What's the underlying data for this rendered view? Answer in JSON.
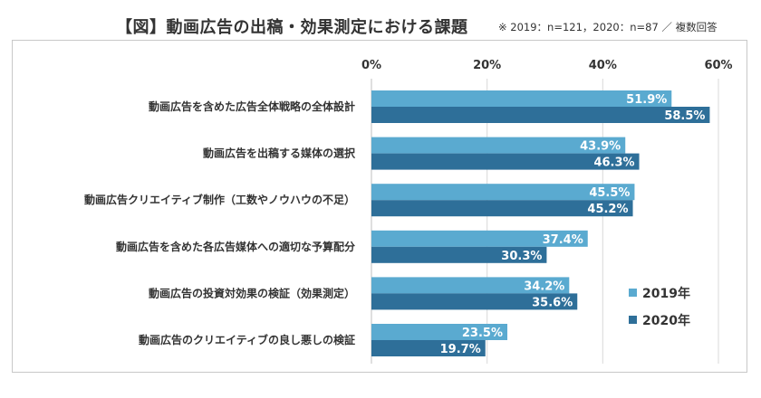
{
  "title": "【図】動画広告の出稿・効果測定における課題",
  "note": "※ 2019：n=121，2020：n=87 ／ 複数回答",
  "chart_data": {
    "type": "bar",
    "orientation": "horizontal",
    "categories": [
      "動画広告を含めた広告全体戦略の全体設計",
      "動画広告を出稿する媒体の選択",
      "動画広告クリエイティブ制作（工数やノウハウの不足）",
      "動画広告を含めた各広告媒体への適切な予算配分",
      "動画広告の投資対効果の検証（効果測定）",
      "動画広告のクリエイティブの良し悪しの検証"
    ],
    "series": [
      {
        "name": "2019年",
        "color": "#5aaad0",
        "values": [
          51.9,
          43.9,
          45.5,
          37.4,
          34.2,
          23.5
        ]
      },
      {
        "name": "2020年",
        "color": "#2e6f99",
        "values": [
          58.5,
          46.3,
          45.2,
          30.3,
          35.6,
          19.7
        ]
      }
    ],
    "xlim": [
      0,
      60
    ],
    "ticks": [
      "0%",
      "20%",
      "40%",
      "60%"
    ],
    "tick_values": [
      0,
      20,
      40,
      60
    ],
    "value_suffix": "%",
    "grid": true,
    "legend": "bottom-right"
  }
}
